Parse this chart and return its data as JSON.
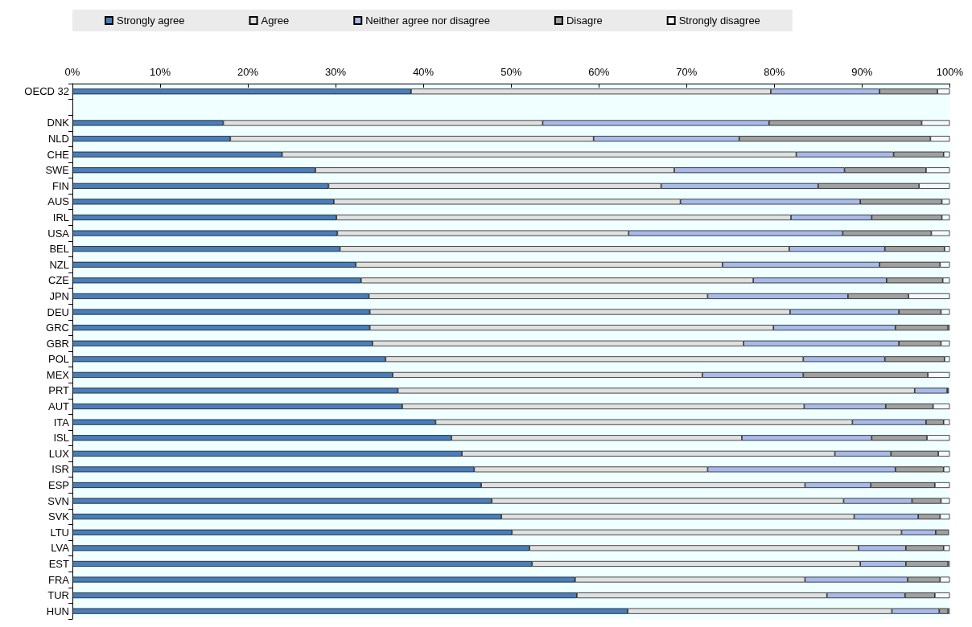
{
  "chart_data": {
    "type": "bar",
    "orientation": "horizontal",
    "stacked": true,
    "legend": "top",
    "grid": false,
    "categories": [
      "OECD 32",
      null,
      "DNK",
      "NLD",
      "CHE",
      "SWE",
      "FIN",
      "AUS",
      "IRL",
      "USA",
      "BEL",
      "NZL",
      "CZE",
      "JPN",
      "DEU",
      "GRC",
      "GBR",
      "POL",
      "MEX",
      "PRT",
      "AUT",
      "ITA",
      "ISL",
      "LUX",
      "ISR",
      "ESP",
      "SVN",
      "SVK",
      "LTU",
      "LVA",
      "EST",
      "FRA",
      "TUR",
      "HUN"
    ],
    "xlim": [
      0,
      100
    ],
    "xticks": [
      {
        "value": 0,
        "label": "0%"
      },
      {
        "value": 10,
        "label": "10%"
      },
      {
        "value": 20,
        "label": "20%"
      },
      {
        "value": 30,
        "label": "30%"
      },
      {
        "value": 40,
        "label": "40%"
      },
      {
        "value": 50,
        "label": "50%"
      },
      {
        "value": 60,
        "label": "60%"
      },
      {
        "value": 70,
        "label": "70%"
      },
      {
        "value": 80,
        "label": "80%"
      },
      {
        "value": 90,
        "label": "90%"
      },
      {
        "value": 100,
        "label": "100%"
      }
    ],
    "series": [
      {
        "name": "Strongly agree",
        "color": "#4a7ebb",
        "values": [
          38.6,
          null,
          17.2,
          18.0,
          23.9,
          27.7,
          29.2,
          29.8,
          30.1,
          30.2,
          30.5,
          32.3,
          32.9,
          33.8,
          33.9,
          33.9,
          34.2,
          35.7,
          36.5,
          37.1,
          37.6,
          41.4,
          43.2,
          44.4,
          45.8,
          46.6,
          47.8,
          48.9,
          50.1,
          52.1,
          52.4,
          57.3,
          57.5,
          63.3
        ]
      },
      {
        "name": "Agree",
        "color": "#e0e0e0",
        "values": [
          41.0,
          null,
          36.4,
          41.4,
          58.6,
          40.9,
          37.9,
          39.5,
          51.8,
          33.2,
          51.2,
          41.8,
          44.7,
          38.6,
          47.9,
          46.0,
          42.3,
          47.6,
          35.3,
          58.9,
          45.8,
          47.5,
          33.1,
          42.5,
          26.6,
          36.9,
          40.1,
          40.2,
          44.4,
          37.5,
          37.4,
          26.2,
          28.5,
          30.1
        ]
      },
      {
        "name": "Neither agree nor disagree",
        "color": "#a9b9e8",
        "values": [
          12.4,
          null,
          25.8,
          16.6,
          11.1,
          19.4,
          17.9,
          20.5,
          9.2,
          24.4,
          10.9,
          17.9,
          15.2,
          16.0,
          12.4,
          13.9,
          17.7,
          9.3,
          11.5,
          3.7,
          9.3,
          8.4,
          14.8,
          6.4,
          21.4,
          7.5,
          7.8,
          7.3,
          3.9,
          5.4,
          5.2,
          11.7,
          8.9,
          5.4
        ]
      },
      {
        "name": "Disagre",
        "color": "#a0a0a0",
        "values": [
          6.6,
          null,
          17.4,
          21.8,
          5.7,
          9.3,
          11.5,
          9.3,
          8.0,
          10.1,
          6.8,
          6.9,
          6.4,
          6.9,
          4.8,
          6.0,
          4.8,
          6.8,
          14.2,
          0.2,
          5.4,
          2.0,
          6.3,
          5.4,
          5.5,
          7.3,
          3.3,
          2.5,
          1.5,
          4.3,
          4.8,
          3.7,
          3.4,
          1.0
        ]
      },
      {
        "name": "Strongly disagree",
        "color": "#f5f8ff",
        "values": [
          1.4,
          null,
          3.2,
          2.2,
          0.7,
          2.7,
          3.5,
          0.9,
          0.9,
          2.1,
          0.6,
          1.1,
          0.8,
          4.7,
          1.0,
          0.2,
          1.0,
          0.6,
          2.5,
          null,
          1.9,
          0.7,
          2.6,
          1.3,
          0.7,
          1.7,
          1.0,
          1.1,
          null,
          0.7,
          0.2,
          1.1,
          1.7,
          0.2
        ]
      }
    ]
  }
}
